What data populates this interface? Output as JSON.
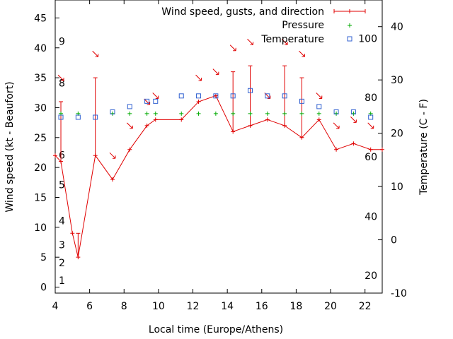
{
  "chart_data": {
    "type": "line",
    "xlabel": "Local time (Europe/Athens)",
    "ylabel": "Wind speed (kt - Beaufort)",
    "y2label": "Temperature (C - F)",
    "xlim": [
      4,
      23
    ],
    "ylim": [
      -1,
      48
    ],
    "y2lim": [
      -10,
      45
    ],
    "x_ticks": [
      "4",
      "6",
      "8",
      "10",
      "12",
      "14",
      "16",
      "18",
      "20",
      "22"
    ],
    "y_ticks": [
      "0",
      "5",
      "10",
      "15",
      "20",
      "25",
      "30",
      "35",
      "40",
      "45"
    ],
    "y2_ticks": [
      "-10",
      "0",
      "10",
      "20",
      "30",
      "40"
    ],
    "beaufort_labels": [
      {
        "label": "1",
        "y": 1.1
      },
      {
        "label": "2",
        "y": 4.1
      },
      {
        "label": "3",
        "y": 7.1
      },
      {
        "label": "4",
        "y": 11.1
      },
      {
        "label": "5",
        "y": 17.1
      },
      {
        "label": "6",
        "y": 22.1
      },
      {
        "label": "8",
        "y": 34.1
      },
      {
        "label": "9",
        "y": 41.1
      }
    ],
    "fahrenheit_labels": [
      {
        "label": "20",
        "y": -6.7
      },
      {
        "label": "40",
        "y": 4.4
      },
      {
        "label": "60",
        "y": 15.6
      },
      {
        "label": "80",
        "y": 26.7
      },
      {
        "label": "100",
        "y": 37.8
      }
    ],
    "legend_position": "top-right",
    "series": [
      {
        "name": "Wind speed, gusts, and direction",
        "color": "#e00000",
        "x": [
          4,
          4.33,
          5,
          5.33,
          6.33,
          7.33,
          8.33,
          9.33,
          9.83,
          11.33,
          12.33,
          13.33,
          14.33,
          15.33,
          16.33,
          17.33,
          18.33,
          19.33,
          20.33,
          21.33,
          22.33,
          23
        ],
        "values": [
          22,
          21,
          9,
          5,
          22,
          18,
          23,
          27,
          28,
          28,
          31,
          32,
          26,
          27,
          28,
          27,
          25,
          28,
          23,
          24,
          23,
          23
        ],
        "gusts": [
          null,
          31,
          null,
          9,
          35,
          null,
          null,
          null,
          null,
          null,
          null,
          null,
          36,
          37,
          null,
          37,
          35,
          null,
          null,
          null,
          null,
          null
        ],
        "directions": [
          {
            "x": 4.33,
            "y": 35,
            "deg": 135
          },
          {
            "x": 6.33,
            "y": 39,
            "deg": 135
          },
          {
            "x": 7.33,
            "y": 22,
            "deg": 135
          },
          {
            "x": 8.33,
            "y": 27,
            "deg": 135
          },
          {
            "x": 9.33,
            "y": 31,
            "deg": 135
          },
          {
            "x": 9.83,
            "y": 32,
            "deg": 135
          },
          {
            "x": 12.33,
            "y": 35,
            "deg": 135
          },
          {
            "x": 13.33,
            "y": 36,
            "deg": 135
          },
          {
            "x": 14.33,
            "y": 40,
            "deg": 135
          },
          {
            "x": 15.33,
            "y": 41,
            "deg": 135
          },
          {
            "x": 16.33,
            "y": 32,
            "deg": 135
          },
          {
            "x": 17.33,
            "y": 41,
            "deg": 135
          },
          {
            "x": 18.33,
            "y": 39,
            "deg": 135
          },
          {
            "x": 19.33,
            "y": 32,
            "deg": 135
          },
          {
            "x": 20.33,
            "y": 27,
            "deg": 135
          },
          {
            "x": 21.33,
            "y": 28,
            "deg": 135
          },
          {
            "x": 22.33,
            "y": 27,
            "deg": 135
          }
        ]
      },
      {
        "name": "Pressure",
        "color": "#00aa00",
        "axis": "left",
        "x": [
          4.33,
          5.33,
          7.33,
          8.33,
          9.33,
          9.83,
          11.33,
          12.33,
          13.33,
          14.33,
          15.33,
          16.33,
          17.33,
          18.33,
          19.33,
          20.33,
          21.33,
          22.33
        ],
        "values": [
          29,
          29,
          29,
          29,
          29,
          29,
          29,
          29,
          29,
          29,
          29,
          29,
          29,
          29,
          29,
          29,
          29,
          29
        ]
      },
      {
        "name": "Temperature",
        "color": "#3060d0",
        "axis": "right",
        "x": [
          4.33,
          5.33,
          6.33,
          7.33,
          8.33,
          9.33,
          9.83,
          11.33,
          12.33,
          13.33,
          14.33,
          15.33,
          16.33,
          17.33,
          18.33,
          19.33,
          20.33,
          21.33,
          22.33
        ],
        "values": [
          23,
          23,
          23,
          24,
          25,
          26,
          26,
          27,
          27,
          27,
          27,
          28,
          27,
          27,
          26,
          25,
          24,
          24,
          23
        ]
      }
    ]
  }
}
